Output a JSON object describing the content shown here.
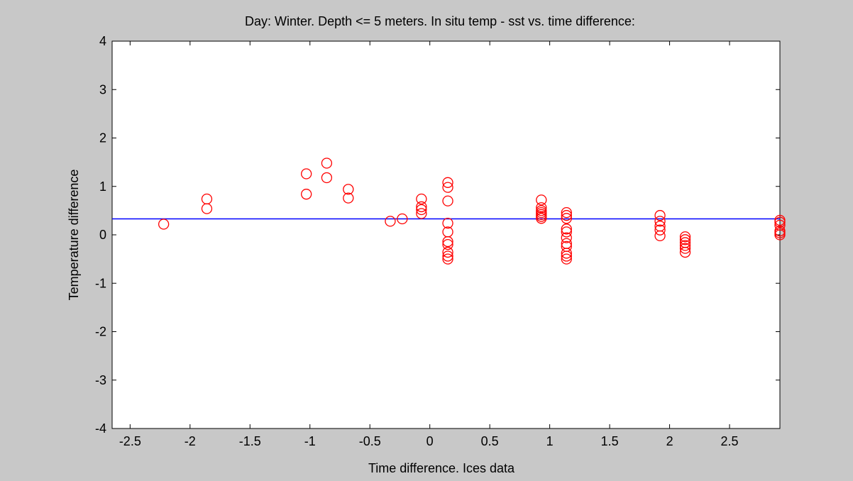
{
  "figure": {
    "background": "#c8c8c8"
  },
  "chart_data": {
    "type": "scatter",
    "title": "Day:  Winter. Depth <= 5 meters. In  situ temp - sst vs. time difference:",
    "xlabel": "Time difference. Ices data",
    "ylabel": "Temperature difference",
    "xlim": [
      -2.65,
      2.92
    ],
    "ylim": [
      -4,
      4
    ],
    "xticks": [
      -2.5,
      -2,
      -1.5,
      -1,
      -0.5,
      0,
      0.5,
      1,
      1.5,
      2,
      2.5
    ],
    "xtick_labels": [
      "-2.5",
      "-2",
      "-1.5",
      "-1",
      "-0.5",
      "0",
      "0.5",
      "1",
      "1.5",
      "2",
      "2.5"
    ],
    "yticks": [
      -4,
      -3,
      -2,
      -1,
      0,
      1,
      2,
      3,
      4
    ],
    "ytick_labels": [
      "-4",
      "-3",
      "-2",
      "-1",
      "0",
      "1",
      "2",
      "3",
      "4"
    ],
    "grid": false,
    "legend": "none",
    "marker_color": "#ff0000",
    "reference_line": {
      "y": 0.33,
      "color": "#0000ff"
    },
    "points": [
      [
        -2.22,
        0.22
      ],
      [
        -1.86,
        0.74
      ],
      [
        -1.86,
        0.54
      ],
      [
        -1.03,
        1.26
      ],
      [
        -1.03,
        0.84
      ],
      [
        -0.86,
        1.48
      ],
      [
        -0.86,
        1.18
      ],
      [
        -0.68,
        0.94
      ],
      [
        -0.68,
        0.76
      ],
      [
        -0.33,
        0.28
      ],
      [
        -0.23,
        0.33
      ],
      [
        -0.07,
        0.74
      ],
      [
        -0.07,
        0.58
      ],
      [
        -0.07,
        0.52
      ],
      [
        -0.07,
        0.44
      ],
      [
        0.15,
        1.08
      ],
      [
        0.15,
        0.98
      ],
      [
        0.15,
        0.7
      ],
      [
        0.15,
        0.24
      ],
      [
        0.15,
        0.06
      ],
      [
        0.15,
        -0.14
      ],
      [
        0.15,
        -0.2
      ],
      [
        0.15,
        -0.36
      ],
      [
        0.15,
        -0.44
      ],
      [
        0.15,
        -0.5
      ],
      [
        0.93,
        0.72
      ],
      [
        0.93,
        0.56
      ],
      [
        0.93,
        0.5
      ],
      [
        0.93,
        0.46
      ],
      [
        0.93,
        0.42
      ],
      [
        0.93,
        0.38
      ],
      [
        0.93,
        0.34
      ],
      [
        1.14,
        0.46
      ],
      [
        1.14,
        0.4
      ],
      [
        1.14,
        0.34
      ],
      [
        1.14,
        0.12
      ],
      [
        1.14,
        0.06
      ],
      [
        1.14,
        -0.06
      ],
      [
        1.14,
        -0.18
      ],
      [
        1.14,
        -0.24
      ],
      [
        1.14,
        -0.38
      ],
      [
        1.14,
        -0.44
      ],
      [
        1.14,
        -0.5
      ],
      [
        1.92,
        0.4
      ],
      [
        1.92,
        0.28
      ],
      [
        1.92,
        0.18
      ],
      [
        1.92,
        0.1
      ],
      [
        1.92,
        -0.02
      ],
      [
        2.13,
        -0.04
      ],
      [
        2.13,
        -0.1
      ],
      [
        2.13,
        -0.16
      ],
      [
        2.13,
        -0.22
      ],
      [
        2.13,
        -0.28
      ],
      [
        2.13,
        -0.36
      ],
      [
        2.92,
        0.3
      ],
      [
        2.92,
        0.26
      ],
      [
        2.92,
        0.2
      ],
      [
        2.92,
        0.08
      ],
      [
        2.92,
        0.04
      ],
      [
        2.92,
        0.0
      ]
    ]
  }
}
